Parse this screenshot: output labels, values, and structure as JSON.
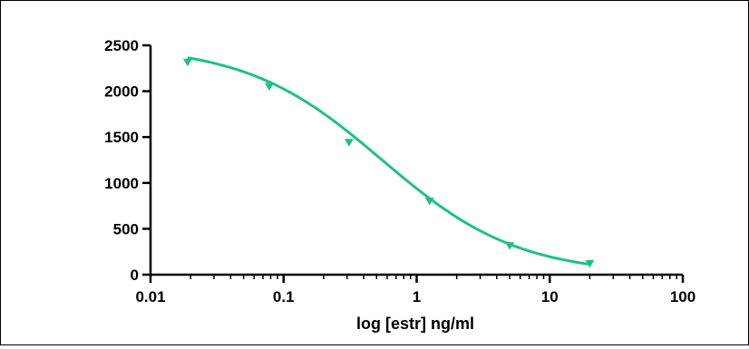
{
  "chart_data": {
    "type": "line",
    "title": "",
    "xlabel": "log [estr] ng/ml",
    "ylabel": "",
    "x_scale": "log",
    "xlim": [
      0.01,
      100
    ],
    "ylim": [
      0,
      2500
    ],
    "x_ticks": [
      0.01,
      0.1,
      1,
      10,
      100
    ],
    "x_tick_labels": [
      "0.01",
      "0.1",
      "1",
      "10",
      "100"
    ],
    "y_ticks": [
      0,
      500,
      1000,
      1500,
      2000,
      2500
    ],
    "y_tick_labels": [
      "0",
      "500",
      "1000",
      "1500",
      "2000",
      "2500"
    ],
    "grid": false,
    "legend": "none",
    "series": [
      {
        "color": "#1fbf8a",
        "marker": "triangle-down",
        "points": [
          {
            "x": 0.019,
            "y": 2315
          },
          {
            "x": 0.078,
            "y": 2050
          },
          {
            "x": 0.31,
            "y": 1440
          },
          {
            "x": 1.25,
            "y": 800
          },
          {
            "x": 5.0,
            "y": 315
          },
          {
            "x": 20.0,
            "y": 120
          }
        ],
        "fit": {
          "model": "4PL",
          "top": 2500,
          "bottom": 0,
          "ec50": 0.55,
          "hill": 0.85
        }
      }
    ]
  }
}
